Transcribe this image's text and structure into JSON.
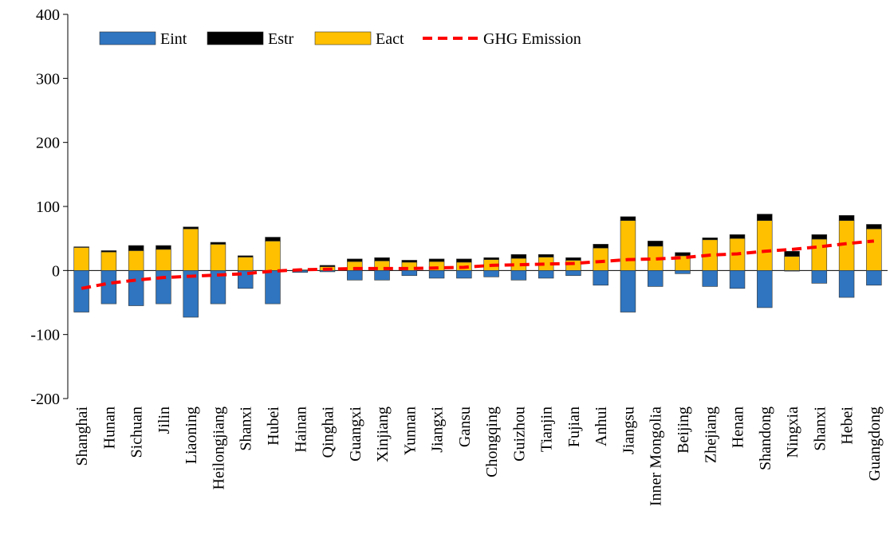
{
  "chart_data": {
    "type": "bar",
    "stacked": true,
    "categories": [
      "Shanghai",
      "Hunan",
      "Sichuan",
      "Jilin",
      "Liaoning",
      "Heilongjiang",
      "Shanxi",
      "Hubei",
      "Hainan",
      "Qinghai",
      "Guangxi",
      "Xinjiang",
      "Yunnan",
      "Jiangxi",
      "Gansu",
      "Chongqing",
      "Guizhou",
      "Tianjin",
      "Fujian",
      "Anhui",
      "Jiangsu",
      "Inner Mongolia",
      "Beijing",
      "Zhejiang",
      "Henan",
      "Shandong",
      "Ningxia",
      "Shanxi",
      "Hebei",
      "Guangdong"
    ],
    "series": [
      {
        "name": "Eint",
        "type": "bar",
        "color": "#2f75c0",
        "values": [
          -65,
          -52,
          -55,
          -52,
          -73,
          -52,
          -28,
          -52,
          -3,
          -2,
          -15,
          -15,
          -8,
          -12,
          -12,
          -10,
          -15,
          -12,
          -8,
          -23,
          -65,
          -25,
          -5,
          -25,
          -28,
          -58,
          -1,
          -20,
          -42,
          -23
        ]
      },
      {
        "name": "Estr",
        "type": "bar",
        "color": "#000000",
        "values": [
          1,
          2,
          8,
          6,
          3,
          3,
          2,
          6,
          0,
          2,
          4,
          5,
          3,
          4,
          5,
          3,
          6,
          4,
          4,
          6,
          6,
          8,
          5,
          3,
          6,
          10,
          8,
          7,
          8,
          7
        ]
      },
      {
        "name": "Eact",
        "type": "bar",
        "color": "#ffc000",
        "values": [
          36,
          29,
          31,
          33,
          65,
          41,
          21,
          46,
          1,
          6,
          14,
          15,
          13,
          14,
          13,
          17,
          19,
          21,
          16,
          35,
          78,
          38,
          23,
          48,
          50,
          78,
          22,
          49,
          78,
          65
        ]
      },
      {
        "name": "GHG Emission",
        "type": "line",
        "color": "#ff0000",
        "values": [
          -28,
          -20,
          -15,
          -11,
          -9,
          -7,
          -5,
          -1,
          1,
          2,
          3,
          3,
          3,
          4,
          5,
          8,
          9,
          10,
          11,
          14,
          17,
          18,
          20,
          24,
          26,
          30,
          33,
          37,
          42,
          46
        ]
      }
    ],
    "ylim": [
      -200,
      400
    ],
    "yticks": [
      -200,
      -100,
      0,
      100,
      200,
      300,
      400
    ],
    "grid": false
  }
}
